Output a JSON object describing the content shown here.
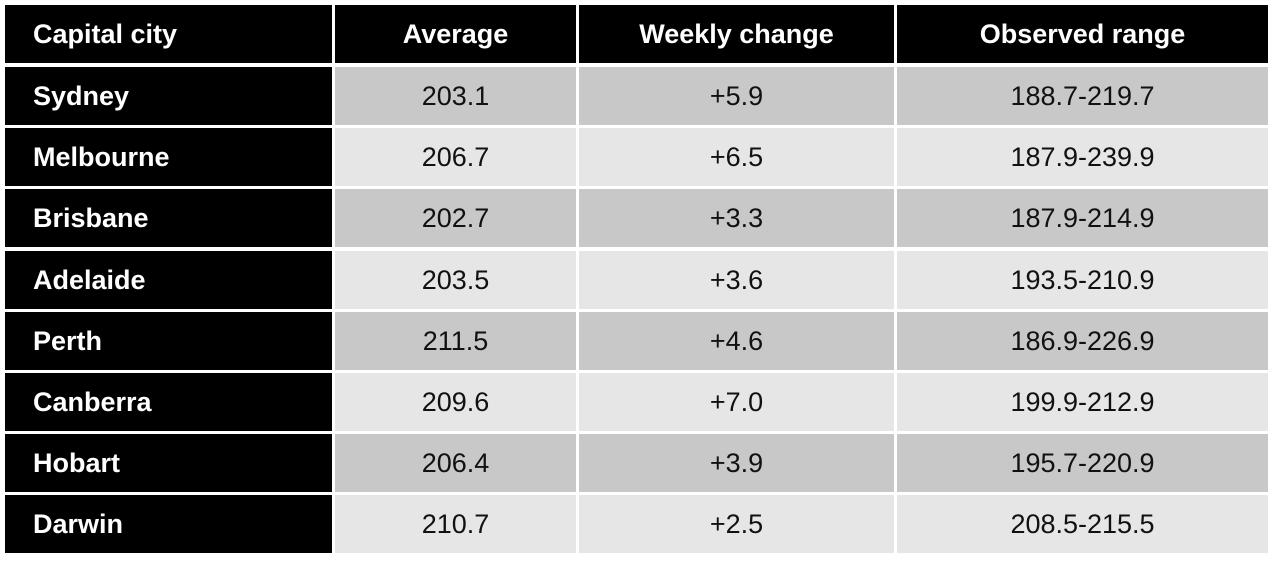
{
  "chart_data": {
    "type": "table",
    "columns": [
      "Capital city",
      "Average",
      "Weekly change",
      "Observed range"
    ],
    "rows": [
      [
        "Sydney",
        "203.1",
        "+5.9",
        "188.7-219.7"
      ],
      [
        "Melbourne",
        "206.7",
        "+6.5",
        "187.9-239.9"
      ],
      [
        "Brisbane",
        "202.7",
        "+3.3",
        "187.9-214.9"
      ],
      [
        "Adelaide",
        "203.5",
        "+3.6",
        "193.5-210.9"
      ],
      [
        "Perth",
        "211.5",
        "+4.6",
        "186.9-226.9"
      ],
      [
        "Canberra",
        "209.6",
        "+7.0",
        "199.9-212.9"
      ],
      [
        "Hobart",
        "206.4",
        "+3.9",
        "195.7-220.9"
      ],
      [
        "Darwin",
        "210.7",
        "+2.5",
        "208.5-215.5"
      ]
    ]
  },
  "colors": {
    "header_bg": "#000000",
    "header_text": "#ffffff",
    "row_odd_bg": "#c8c8c8",
    "row_even_bg": "#e6e6e6",
    "value_text": "#111111"
  }
}
